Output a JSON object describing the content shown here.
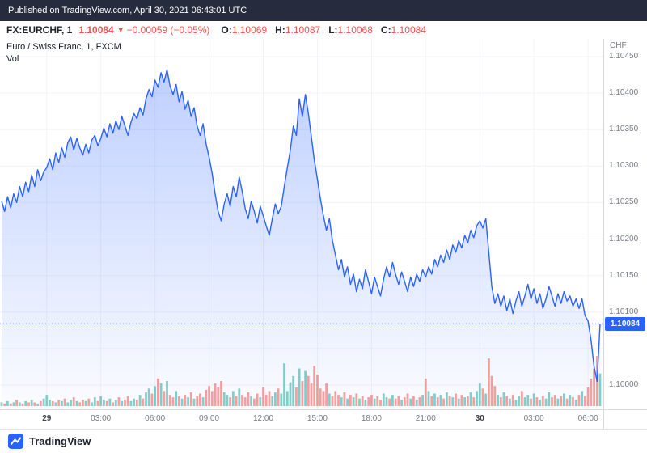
{
  "header": {
    "published": "Published on TradingView.com, April 30, 2021 06:43:01 UTC"
  },
  "info_bar": {
    "symbol": "FX:EURCHF, 1",
    "last_price": "1.10084",
    "direction_glyph": "▼",
    "change": "−0.00059 (−0.05%)",
    "ohlc": [
      {
        "label": "O:",
        "value": "1.10069"
      },
      {
        "label": "H:",
        "value": "1.10087"
      },
      {
        "label": "L:",
        "value": "1.10068"
      },
      {
        "label": "C:",
        "value": "1.10084"
      }
    ]
  },
  "chart": {
    "legend_title": "Euro / Swiss Franc, 1, FXCM",
    "legend_vol": "Vol",
    "axis_currency": "CHF",
    "price_tag": "1.10084",
    "colors": {
      "line": "#2962ff",
      "area_top": "rgba(41,98,255,0.30)",
      "area_bottom": "rgba(41,98,255,0.02)",
      "vol_up": "rgba(38,166,154,0.55)",
      "vol_down": "rgba(239,83,80,0.55)",
      "tag_bg": "#2962ff",
      "down_red": "#ef5350",
      "grid": "#f0f3fa"
    }
  },
  "footer": {
    "brand": "TradingView"
  },
  "chart_data": {
    "type": "area",
    "title": "Euro / Swiss Franc, 1, FXCM",
    "symbol": "FX:EURCHF",
    "interval": "1",
    "exchange": "FXCM",
    "ylabel": "CHF",
    "y_range": [
      1.1,
      1.1045
    ],
    "last_price": 1.10084,
    "grid": true,
    "y_ticks": [
      {
        "value": 1.1045,
        "label": "1.10450"
      },
      {
        "value": 1.104,
        "label": "1.10400"
      },
      {
        "value": 1.1035,
        "label": "1.10350"
      },
      {
        "value": 1.103,
        "label": "1.10300"
      },
      {
        "value": 1.1025,
        "label": "1.10250"
      },
      {
        "value": 1.102,
        "label": "1.10200"
      },
      {
        "value": 1.1015,
        "label": "1.10150"
      },
      {
        "value": 1.101,
        "label": "1.10100"
      },
      {
        "value": 1.1005,
        "label": ""
      },
      {
        "value": 1.1,
        "label": "1.10000"
      }
    ],
    "x_ticks": [
      {
        "label": "29",
        "pos": 0.0754
      },
      {
        "label": "03:00",
        "pos": 0.1658
      },
      {
        "label": "06:00",
        "pos": 0.2563
      },
      {
        "label": "09:00",
        "pos": 0.3467
      },
      {
        "label": "12:00",
        "pos": 0.4372
      },
      {
        "label": "15:00",
        "pos": 0.5276
      },
      {
        "label": "18:00",
        "pos": 0.6181
      },
      {
        "label": "21:00",
        "pos": 0.7085
      },
      {
        "label": "30",
        "pos": 0.799
      },
      {
        "label": "03:00",
        "pos": 0.8894
      },
      {
        "label": "06:00",
        "pos": 0.9799
      }
    ],
    "prices": [
      1.10252,
      1.10238,
      1.10258,
      1.10243,
      1.10262,
      1.1025,
      1.10272,
      1.10258,
      1.10278,
      1.10265,
      1.10288,
      1.10272,
      1.10295,
      1.1028,
      1.10292,
      1.10298,
      1.1031,
      1.10295,
      1.10318,
      1.10305,
      1.10325,
      1.10312,
      1.10332,
      1.1034,
      1.10322,
      1.10338,
      1.10325,
      1.10315,
      1.1033,
      1.10318,
      1.10336,
      1.10342,
      1.10328,
      1.10338,
      1.10352,
      1.1034,
      1.10358,
      1.10345,
      1.10362,
      1.1035,
      1.10368,
      1.10355,
      1.10342,
      1.1036,
      1.10372,
      1.10365,
      1.1038,
      1.1037,
      1.10392,
      1.10405,
      1.10395,
      1.10418,
      1.10408,
      1.10428,
      1.10415,
      1.10432,
      1.1041,
      1.10398,
      1.10412,
      1.10388,
      1.10402,
      1.10378,
      1.1039,
      1.10368,
      1.1038,
      1.10355,
      1.10342,
      1.10358,
      1.1033,
      1.10312,
      1.1029,
      1.10262,
      1.10238,
      1.10225,
      1.10248,
      1.10262,
      1.10245,
      1.10272,
      1.10258,
      1.10285,
      1.10265,
      1.10242,
      1.10228,
      1.10252,
      1.10238,
      1.10222,
      1.10245,
      1.10232,
      1.10218,
      1.10205,
      1.10228,
      1.10248,
      1.10235,
      1.10245,
      1.10272,
      1.10298,
      1.10322,
      1.10355,
      1.10342,
      1.10392,
      1.10368,
      1.10398,
      1.10372,
      1.1034,
      1.10308,
      1.10282,
      1.10255,
      1.10232,
      1.10212,
      1.10228,
      1.10198,
      1.10178,
      1.10158,
      1.10172,
      1.10148,
      1.10162,
      1.10138,
      1.10152,
      1.10128,
      1.10145,
      1.10132,
      1.10158,
      1.10142,
      1.10125,
      1.10148,
      1.10135,
      1.10122,
      1.10145,
      1.10162,
      1.10148,
      1.10168,
      1.10152,
      1.10138,
      1.10155,
      1.10142,
      1.10128,
      1.10148,
      1.10135,
      1.10152,
      1.10142,
      1.10158,
      1.10148,
      1.10162,
      1.10152,
      1.10172,
      1.10162,
      1.10178,
      1.10168,
      1.10185,
      1.10172,
      1.10192,
      1.10182,
      1.10198,
      1.10188,
      1.10205,
      1.10195,
      1.10212,
      1.10202,
      1.10218,
      1.10225,
      1.10215,
      1.10228,
      1.10182,
      1.10135,
      1.10112,
      1.10125,
      1.10108,
      1.10122,
      1.10102,
      1.10118,
      1.10098,
      1.10115,
      1.10128,
      1.10108,
      1.10122,
      1.10138,
      1.10118,
      1.10132,
      1.10112,
      1.10125,
      1.10105,
      1.10118,
      1.10135,
      1.10122,
      1.10108,
      1.10125,
      1.10112,
      1.10128,
      1.10115,
      1.10122,
      1.10108,
      1.10118,
      1.10105,
      1.10118,
      1.10095,
      1.10088,
      1.10062,
      1.10025,
      1.10005,
      1.10084
    ],
    "volumes": [
      3,
      2,
      4,
      2,
      3,
      5,
      3,
      2,
      4,
      3,
      5,
      3,
      2,
      4,
      6,
      9,
      5,
      4,
      3,
      5,
      4,
      6,
      3,
      5,
      7,
      4,
      3,
      5,
      4,
      6,
      3,
      7,
      4,
      8,
      5,
      4,
      6,
      3,
      5,
      7,
      4,
      5,
      8,
      4,
      6,
      5,
      9,
      6,
      11,
      14,
      10,
      16,
      22,
      18,
      12,
      20,
      9,
      7,
      12,
      8,
      6,
      9,
      7,
      11,
      6,
      8,
      10,
      7,
      13,
      16,
      12,
      18,
      15,
      20,
      11,
      9,
      7,
      12,
      8,
      14,
      9,
      7,
      11,
      8,
      6,
      10,
      7,
      15,
      9,
      12,
      8,
      11,
      14,
      10,
      34,
      12,
      19,
      24,
      15,
      30,
      20,
      28,
      24,
      18,
      32,
      25,
      14,
      12,
      18,
      10,
      8,
      12,
      9,
      7,
      11,
      6,
      9,
      7,
      10,
      6,
      8,
      5,
      7,
      9,
      6,
      8,
      5,
      10,
      7,
      6,
      9,
      6,
      8,
      5,
      7,
      10,
      6,
      8,
      5,
      7,
      9,
      22,
      12,
      8,
      10,
      7,
      9,
      6,
      11,
      8,
      7,
      10,
      6,
      9,
      7,
      8,
      11,
      7,
      12,
      18,
      14,
      10,
      38,
      24,
      16,
      9,
      7,
      11,
      8,
      6,
      9,
      5,
      8,
      12,
      7,
      9,
      6,
      10,
      7,
      5,
      8,
      6,
      11,
      7,
      9,
      6,
      8,
      10,
      6,
      9,
      7,
      5,
      9,
      12,
      8,
      15,
      22,
      30,
      40,
      26
    ]
  }
}
